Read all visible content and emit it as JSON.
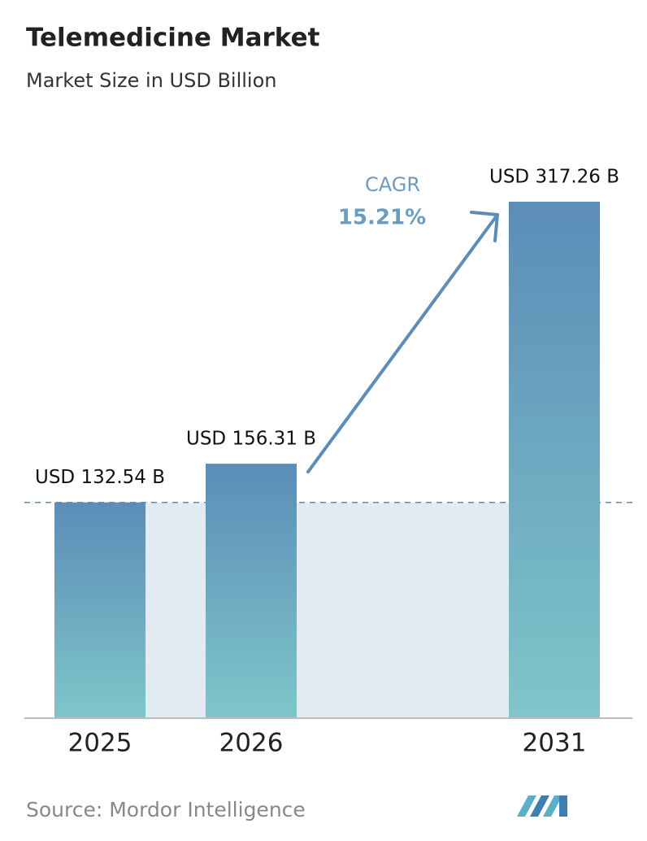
{
  "chart_data": {
    "type": "bar",
    "title": "Telemedicine Market",
    "subtitle": "Market Size in USD Billion",
    "categories": [
      "2025",
      "2026",
      "2031"
    ],
    "values": [
      132.54,
      156.31,
      317.26
    ],
    "value_labels": [
      "USD 132.54 B",
      "USD 156.31 B",
      "USD 317.26 B"
    ],
    "cagr_label": "CAGR",
    "cagr_value": "15.21%",
    "source": "Source: Mordor Intelligence",
    "color": [
      "#5b8db8",
      "#7ec6c9"
    ]
  }
}
